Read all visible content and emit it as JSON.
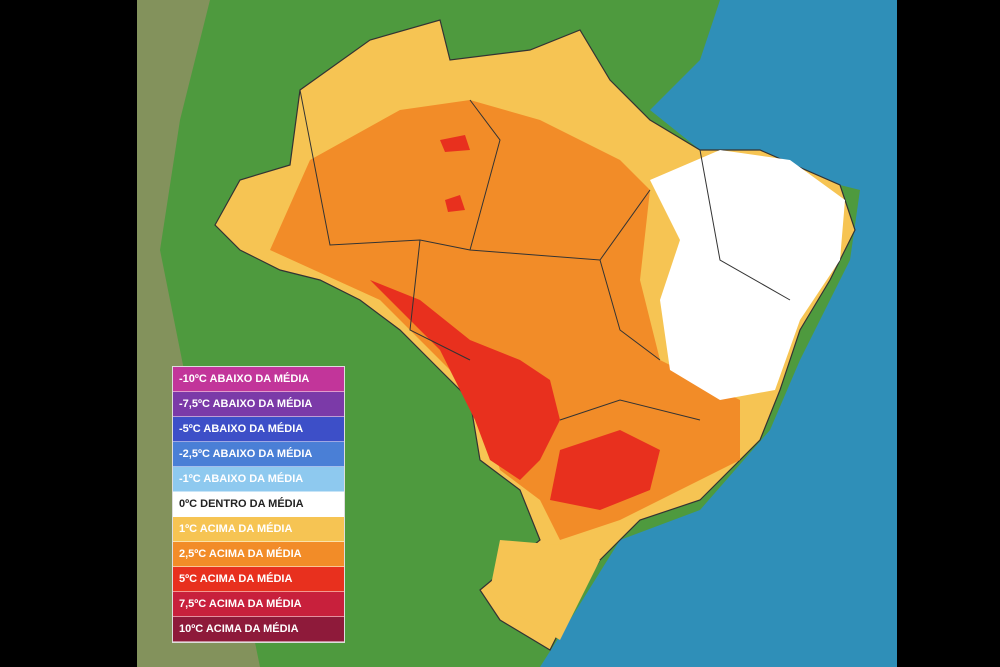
{
  "legend": {
    "items": [
      {
        "label": "-10ºC ABAIXO DA MÉDIA",
        "color": "#c2359a"
      },
      {
        "label": "-7,5ºC ABAIXO DA MÉDIA",
        "color": "#7b3aa8"
      },
      {
        "label": "-5ºC ABAIXO DA MÉDIA",
        "color": "#3d4fc8"
      },
      {
        "label": "-2,5ºC ABAIXO DA MÉDIA",
        "color": "#4a7fd6"
      },
      {
        "label": "-1ºC ABAIXO DA MÉDIA",
        "color": "#8ec9ef"
      },
      {
        "label": "0ºC DENTRO DA MÉDIA",
        "color": "#ffffff"
      },
      {
        "label": "1ºC ACIMA DA MÉDIA",
        "color": "#f6c453"
      },
      {
        "label": "2,5ºC ACIMA DA MÉDIA",
        "color": "#f28c28"
      },
      {
        "label": "5ºC ACIMA DA MÉDIA",
        "color": "#e8301e"
      },
      {
        "label": "7,5ºC ACIMA DA MÉDIA",
        "color": "#c8203c"
      },
      {
        "label": "10ºC ACIMA DA MÉDIA",
        "color": "#8e1a3a"
      }
    ]
  }
}
